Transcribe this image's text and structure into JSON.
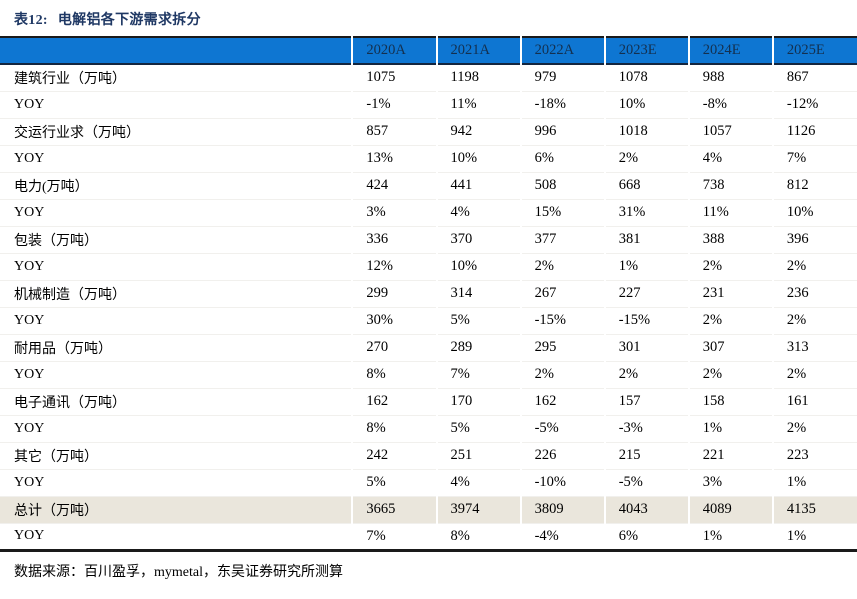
{
  "title": {
    "prefix": "表12:",
    "text": "电解铝各下游需求拆分"
  },
  "colors": {
    "title_navy": "#1F3864",
    "header_blue": "#0E76D2",
    "header_text": "#14304F",
    "total_row_beige": "#EAE6DC",
    "rule_black": "#1a1a1a"
  },
  "table": {
    "columns": [
      "2020A",
      "2021A",
      "2022A",
      "2023E",
      "2024E",
      "2025E"
    ],
    "rows": [
      {
        "label": "建筑行业（万吨）",
        "values": [
          "1075",
          "1198",
          "979",
          "1078",
          "988",
          "867"
        ],
        "highlight": false
      },
      {
        "label": "YOY",
        "values": [
          "-1%",
          "11%",
          "-18%",
          "10%",
          "-8%",
          "-12%"
        ],
        "highlight": false
      },
      {
        "label": "交运行业求（万吨）",
        "values": [
          "857",
          "942",
          "996",
          "1018",
          "1057",
          "1126"
        ],
        "highlight": false
      },
      {
        "label": "YOY",
        "values": [
          "13%",
          "10%",
          "6%",
          "2%",
          "4%",
          "7%"
        ],
        "highlight": false
      },
      {
        "label": "电力(万吨）",
        "values": [
          "424",
          "441",
          "508",
          "668",
          "738",
          "812"
        ],
        "highlight": false
      },
      {
        "label": "YOY",
        "values": [
          "3%",
          "4%",
          "15%",
          "31%",
          "11%",
          "10%"
        ],
        "highlight": false
      },
      {
        "label": "包装（万吨）",
        "values": [
          "336",
          "370",
          "377",
          "381",
          "388",
          "396"
        ],
        "highlight": false
      },
      {
        "label": "YOY",
        "values": [
          "12%",
          "10%",
          "2%",
          "1%",
          "2%",
          "2%"
        ],
        "highlight": false
      },
      {
        "label": "机械制造（万吨）",
        "values": [
          "299",
          "314",
          "267",
          "227",
          "231",
          "236"
        ],
        "highlight": false
      },
      {
        "label": "YOY",
        "values": [
          "30%",
          "5%",
          "-15%",
          "-15%",
          "2%",
          "2%"
        ],
        "highlight": false
      },
      {
        "label": "耐用品（万吨）",
        "values": [
          "270",
          "289",
          "295",
          "301",
          "307",
          "313"
        ],
        "highlight": false
      },
      {
        "label": "YOY",
        "values": [
          "8%",
          "7%",
          "2%",
          "2%",
          "2%",
          "2%"
        ],
        "highlight": false
      },
      {
        "label": "电子通讯（万吨）",
        "values": [
          "162",
          "170",
          "162",
          "157",
          "158",
          "161"
        ],
        "highlight": false
      },
      {
        "label": "YOY",
        "values": [
          "8%",
          "5%",
          "-5%",
          "-3%",
          "1%",
          "2%"
        ],
        "highlight": false
      },
      {
        "label": "其它（万吨）",
        "values": [
          "242",
          "251",
          "226",
          "215",
          "221",
          "223"
        ],
        "highlight": false
      },
      {
        "label": "YOY",
        "values": [
          "5%",
          "4%",
          "-10%",
          "-5%",
          "3%",
          "1%"
        ],
        "highlight": false
      },
      {
        "label": "总计（万吨）",
        "values": [
          "3665",
          "3974",
          "3809",
          "4043",
          "4089",
          "4135"
        ],
        "highlight": true
      },
      {
        "label": "YOY",
        "values": [
          "7%",
          "8%",
          "-4%",
          "6%",
          "1%",
          "1%"
        ],
        "highlight": false
      }
    ]
  },
  "footer": {
    "source_text": "数据来源：百川盈孚，mymetal，东吴证券研究所测算"
  }
}
